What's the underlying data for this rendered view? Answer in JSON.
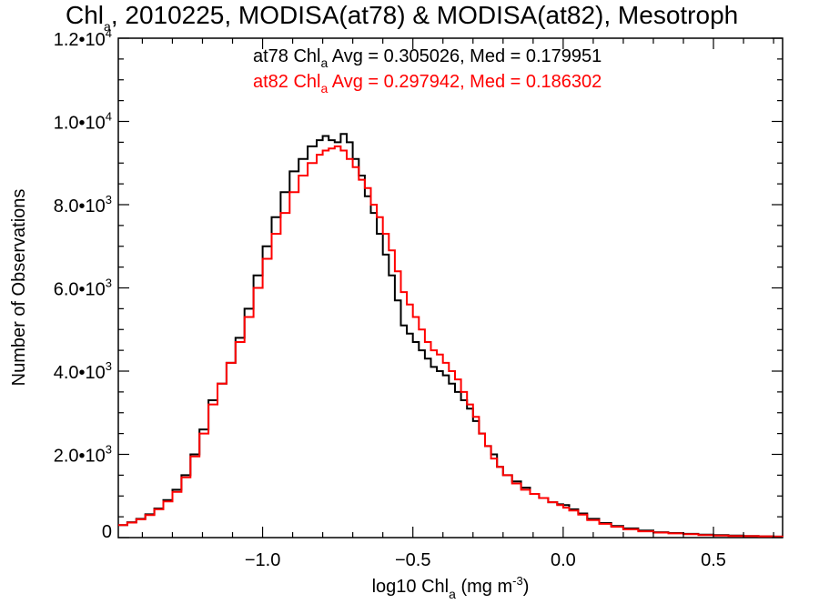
{
  "chart_data": {
    "type": "line",
    "title": {
      "prefix": "Chl",
      "sub": "a",
      "suffix": ", 2010225, MODISA(at78) & MODISA(at82), Mesotroph"
    },
    "xlabel": {
      "prefix": "log10 Chl",
      "sub": "a",
      "mid": " (mg m",
      "sup": "-3",
      "suffix": ")"
    },
    "ylabel": "Number of Observations",
    "xlim": [
      -1.48,
      0.73
    ],
    "ylim": [
      0,
      12000
    ],
    "x_ticks": [
      {
        "value": -1.0,
        "label": "−1.0"
      },
      {
        "value": -0.5,
        "label": "−0.5"
      },
      {
        "value": 0.0,
        "label": "0.0"
      },
      {
        "value": 0.5,
        "label": "0.5"
      }
    ],
    "y_ticks": [
      {
        "value": 0,
        "mant": "0",
        "exp": ""
      },
      {
        "value": 2000,
        "mant": "2.0•10",
        "exp": "3"
      },
      {
        "value": 4000,
        "mant": "4.0•10",
        "exp": "3"
      },
      {
        "value": 6000,
        "mant": "6.0•10",
        "exp": "3"
      },
      {
        "value": 8000,
        "mant": "8.0•10",
        "exp": "3"
      },
      {
        "value": 10000,
        "mant": "1.0•10",
        "exp": "4"
      },
      {
        "value": 12000,
        "mant": "1.2•10",
        "exp": "4"
      }
    ],
    "annotations": [
      {
        "prefix": "at78 Chl",
        "sub": "a",
        "suffix": " Avg = 0.305026, Med = 0.179951",
        "color": "#000000"
      },
      {
        "prefix": "at82 Chl",
        "sub": "a",
        "suffix": " Avg = 0.297942, Med = 0.186302",
        "color": "#ff0000"
      }
    ],
    "grid": false,
    "step": true,
    "series": [
      {
        "color": "#000000",
        "x": [
          -1.48,
          -1.45,
          -1.42,
          -1.39,
          -1.36,
          -1.33,
          -1.3,
          -1.27,
          -1.24,
          -1.21,
          -1.18,
          -1.15,
          -1.12,
          -1.09,
          -1.06,
          -1.03,
          -1.0,
          -0.97,
          -0.94,
          -0.91,
          -0.88,
          -0.85,
          -0.82,
          -0.8,
          -0.78,
          -0.76,
          -0.74,
          -0.72,
          -0.7,
          -0.68,
          -0.66,
          -0.64,
          -0.62,
          -0.6,
          -0.58,
          -0.56,
          -0.54,
          -0.52,
          -0.5,
          -0.48,
          -0.46,
          -0.44,
          -0.42,
          -0.4,
          -0.38,
          -0.36,
          -0.34,
          -0.32,
          -0.3,
          -0.28,
          -0.26,
          -0.24,
          -0.22,
          -0.2,
          -0.17,
          -0.14,
          -0.11,
          -0.08,
          -0.05,
          -0.02,
          0.0,
          0.02,
          0.05,
          0.08,
          0.12,
          0.16,
          0.2,
          0.25,
          0.3,
          0.35,
          0.4,
          0.45,
          0.5,
          0.55,
          0.6,
          0.65,
          0.7,
          0.73
        ],
        "y": [
          300,
          370,
          450,
          560,
          700,
          900,
          1150,
          1500,
          2000,
          2600,
          3300,
          3700,
          4200,
          4800,
          5500,
          6300,
          7000,
          7700,
          8300,
          8800,
          9100,
          9400,
          9550,
          9650,
          9550,
          9500,
          9700,
          9500,
          9100,
          8700,
          8200,
          7800,
          7300,
          6800,
          6300,
          5700,
          5100,
          4900,
          4700,
          4500,
          4300,
          4100,
          4000,
          3900,
          3700,
          3500,
          3300,
          3100,
          2800,
          2500,
          2200,
          2000,
          1700,
          1500,
          1350,
          1200,
          1050,
          950,
          850,
          800,
          780,
          680,
          580,
          450,
          350,
          280,
          220,
          170,
          130,
          110,
          90,
          70,
          60,
          50,
          40,
          30,
          25,
          20
        ]
      },
      {
        "color": "#ff0000",
        "x": [
          -1.48,
          -1.45,
          -1.42,
          -1.39,
          -1.36,
          -1.33,
          -1.3,
          -1.27,
          -1.24,
          -1.21,
          -1.18,
          -1.15,
          -1.12,
          -1.09,
          -1.06,
          -1.03,
          -1.0,
          -0.97,
          -0.94,
          -0.91,
          -0.88,
          -0.85,
          -0.82,
          -0.8,
          -0.78,
          -0.76,
          -0.74,
          -0.72,
          -0.7,
          -0.68,
          -0.66,
          -0.64,
          -0.62,
          -0.6,
          -0.58,
          -0.56,
          -0.54,
          -0.52,
          -0.5,
          -0.48,
          -0.46,
          -0.44,
          -0.42,
          -0.4,
          -0.38,
          -0.36,
          -0.34,
          -0.32,
          -0.3,
          -0.28,
          -0.26,
          -0.24,
          -0.22,
          -0.2,
          -0.17,
          -0.14,
          -0.11,
          -0.08,
          -0.05,
          -0.02,
          0.0,
          0.02,
          0.05,
          0.08,
          0.12,
          0.16,
          0.2,
          0.25,
          0.3,
          0.35,
          0.4,
          0.45,
          0.5,
          0.55,
          0.6,
          0.65,
          0.7,
          0.73
        ],
        "y": [
          300,
          360,
          440,
          540,
          680,
          870,
          1100,
          1450,
          1950,
          2500,
          3200,
          3700,
          4200,
          4700,
          5300,
          6000,
          6700,
          7300,
          7800,
          8300,
          8700,
          9000,
          9200,
          9300,
          9350,
          9400,
          9300,
          9100,
          8900,
          8600,
          8400,
          8000,
          7700,
          7300,
          6900,
          6400,
          5900,
          5600,
          5300,
          5000,
          4700,
          4500,
          4400,
          4200,
          4000,
          3800,
          3500,
          3200,
          2900,
          2500,
          2200,
          1900,
          1700,
          1500,
          1300,
          1150,
          1050,
          950,
          850,
          780,
          720,
          650,
          550,
          420,
          330,
          260,
          200,
          150,
          120,
          100,
          80,
          60,
          50,
          40,
          35,
          30,
          25,
          20
        ]
      }
    ]
  }
}
